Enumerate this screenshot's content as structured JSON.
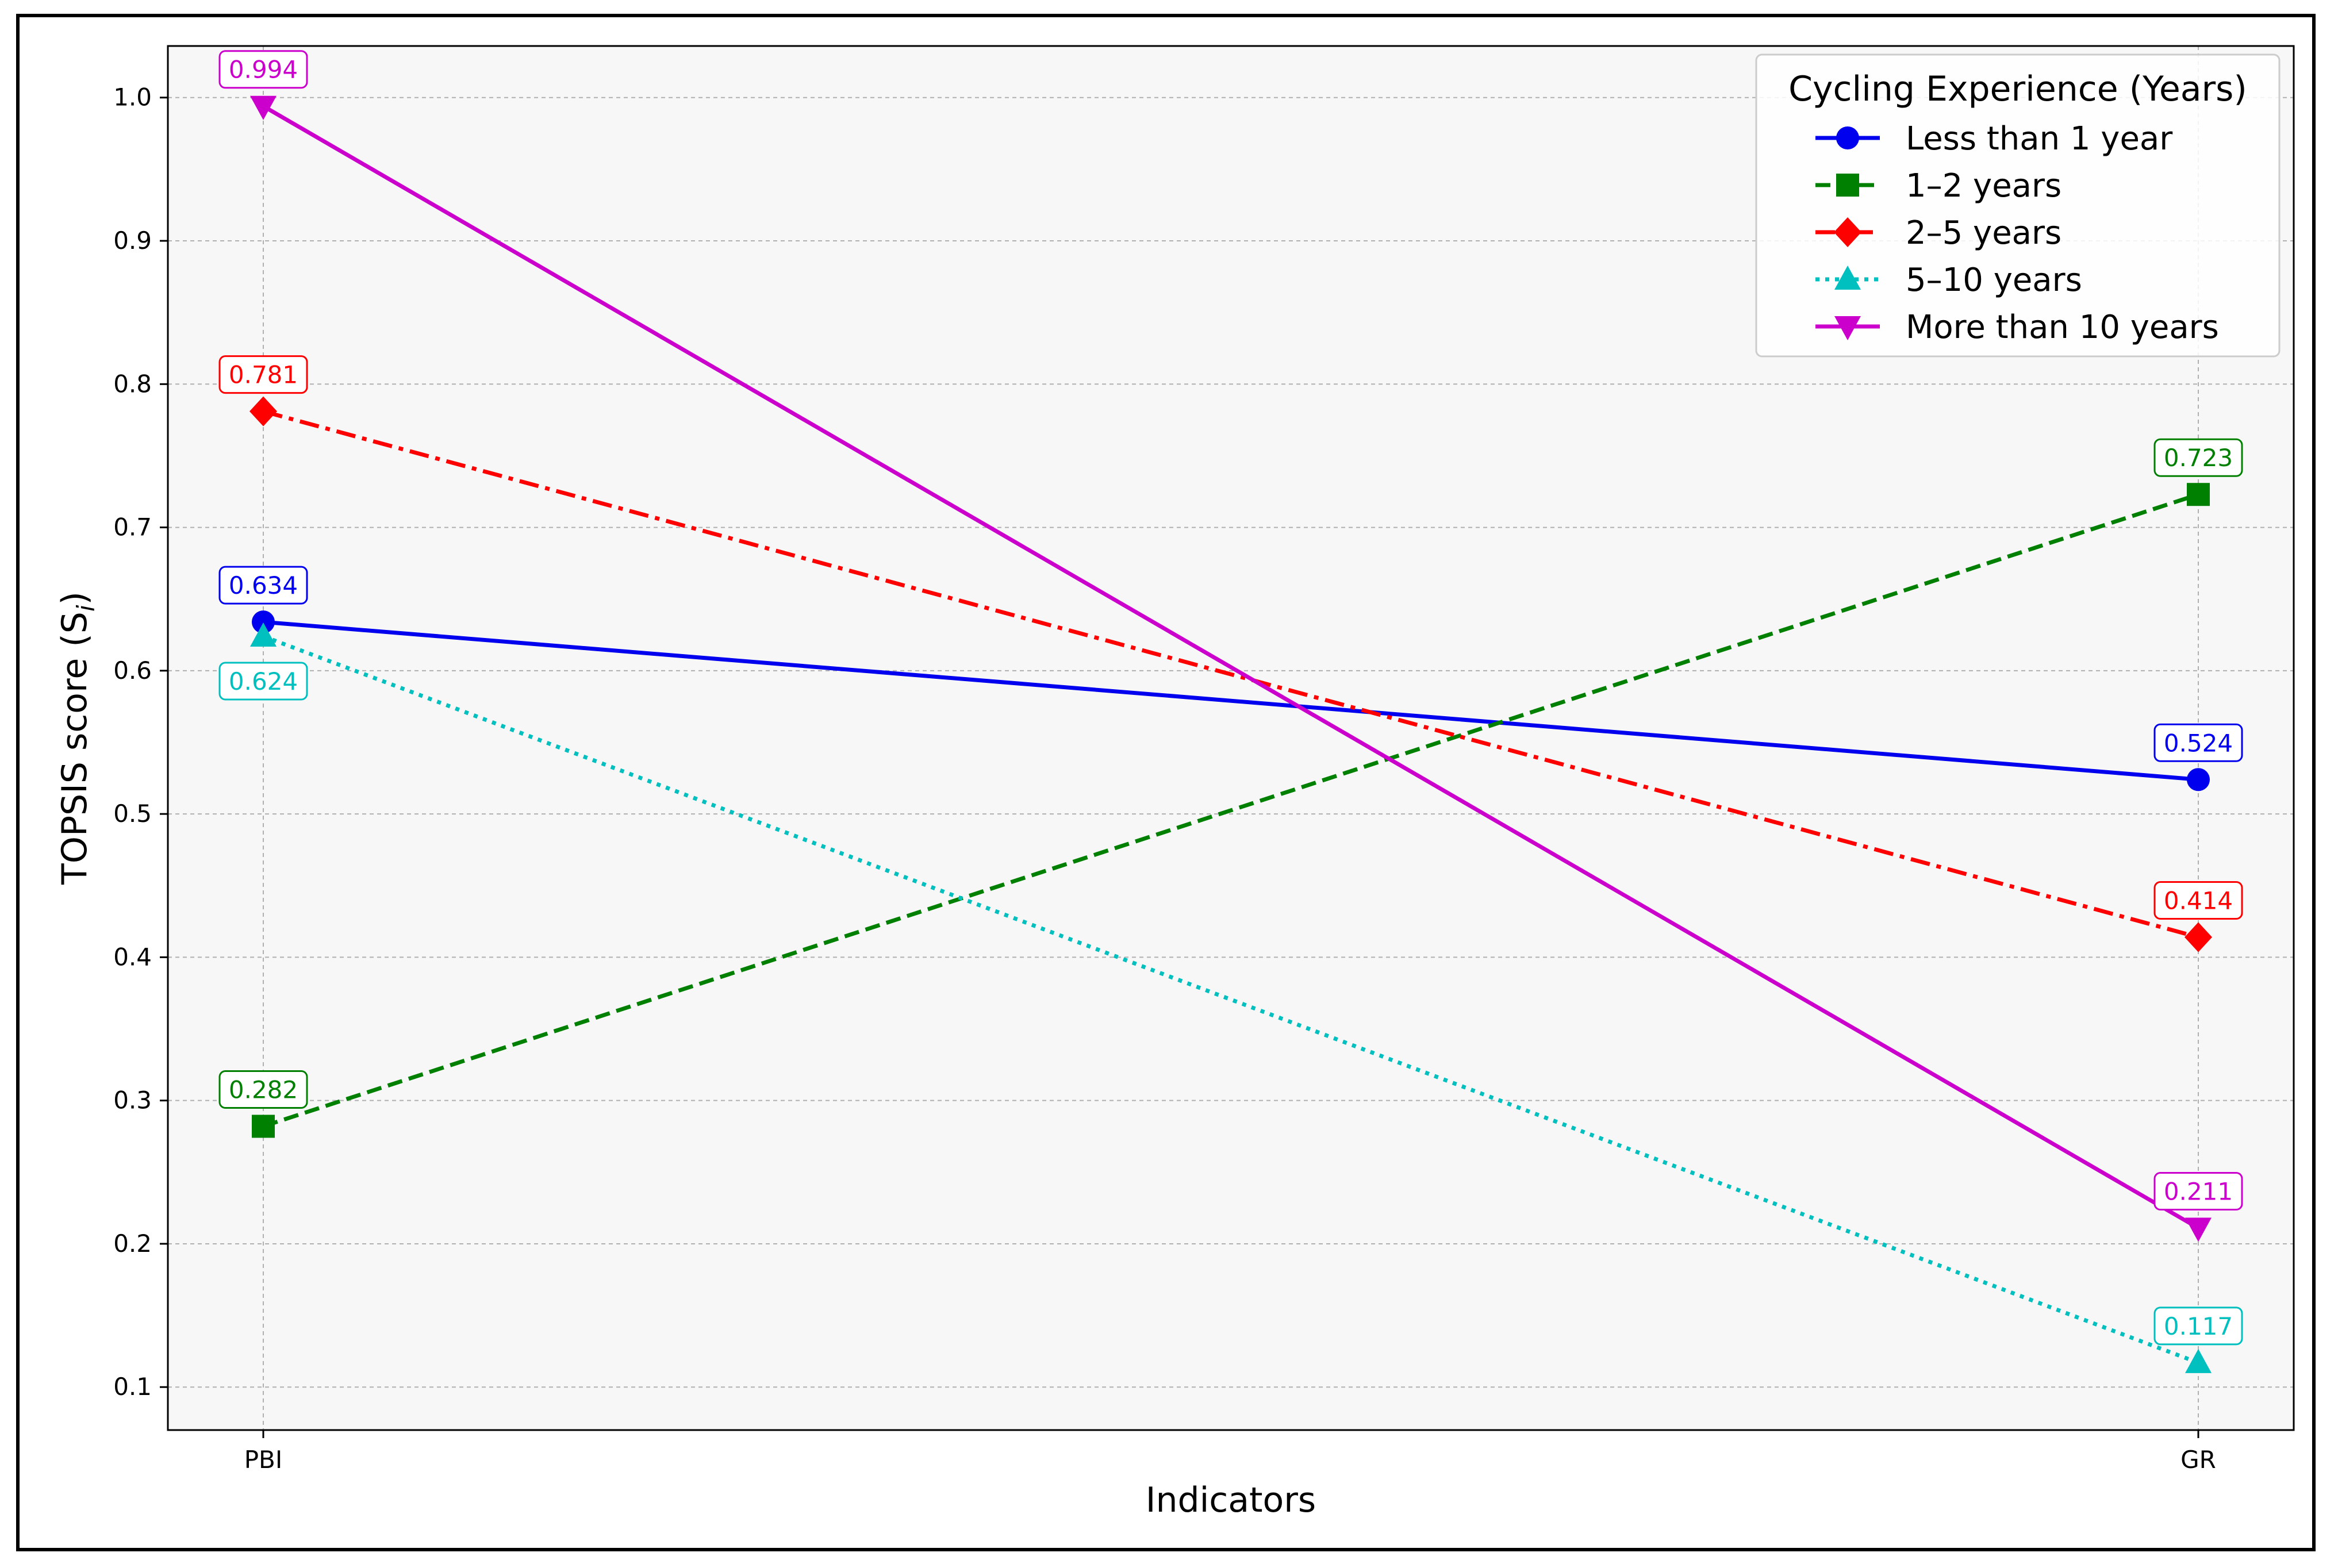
{
  "chart_data": {
    "type": "line",
    "title": "",
    "xlabel": "Indicators",
    "ylabel": "TOPSIS score (S",
    "ylabel_subscript": "i",
    "categories": [
      "PBI",
      "GR"
    ],
    "ylim": [
      0.07,
      1.036
    ],
    "yticks": [
      "0.1",
      "0.2",
      "0.3",
      "0.4",
      "0.5",
      "0.6",
      "0.7",
      "0.8",
      "0.9",
      "1.0"
    ],
    "grid": true,
    "legend_title": "Cycling Experience (Years)",
    "legend_position": "top-right",
    "series": [
      {
        "name": "Less than 1 year",
        "values": [
          0.634,
          0.524
        ],
        "labels": [
          "0.634",
          "0.524"
        ],
        "color": "#0000ee",
        "marker": "circle",
        "dash": "solid"
      },
      {
        "name": "1–2 years",
        "values": [
          0.282,
          0.723
        ],
        "labels": [
          "0.282",
          "0.723"
        ],
        "color": "#008000",
        "marker": "square",
        "dash": "dashed"
      },
      {
        "name": "2–5 years",
        "values": [
          0.781,
          0.414
        ],
        "labels": [
          "0.781",
          "0.414"
        ],
        "color": "#ff0000",
        "marker": "diamond",
        "dash": "dashdot"
      },
      {
        "name": "5–10 years",
        "values": [
          0.624,
          0.117
        ],
        "labels": [
          "0.624",
          "0.117"
        ],
        "color": "#00bfbf",
        "marker": "triangle-up",
        "dash": "dotted"
      },
      {
        "name": "More than 10 years",
        "values": [
          0.994,
          0.211
        ],
        "labels": [
          "0.994",
          "0.211"
        ],
        "color": "#cc00cc",
        "marker": "triangle-down",
        "dash": "solid"
      }
    ]
  }
}
